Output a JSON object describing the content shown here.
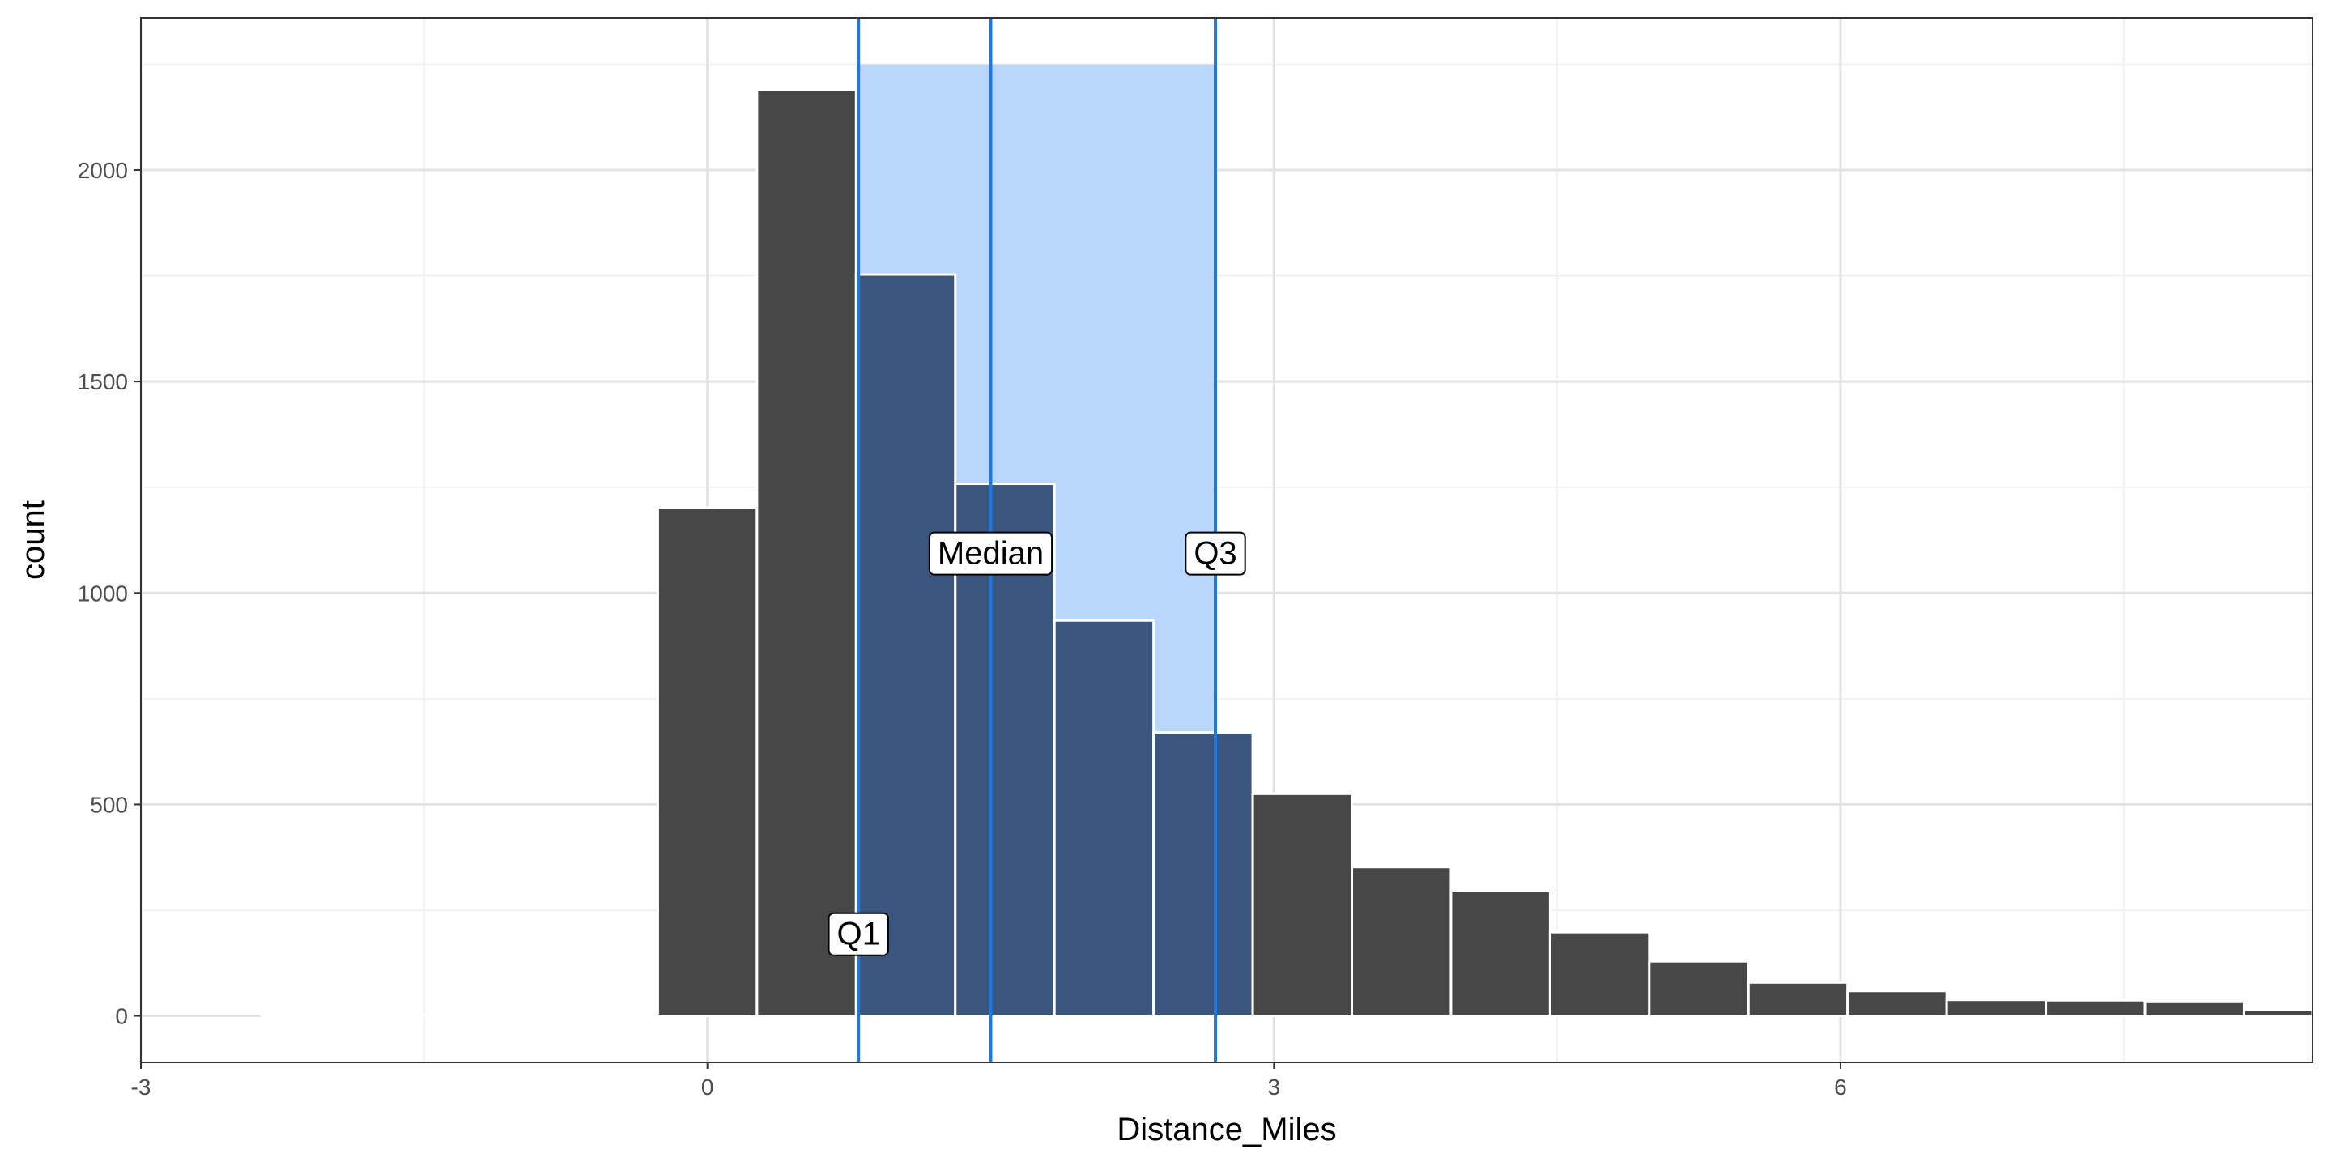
{
  "chart_data": {
    "type": "bar",
    "title": "",
    "xlabel": "Distance_Miles",
    "ylabel": "count",
    "xlim": [
      -3,
      8.5
    ],
    "ylim": [
      -110,
      2360
    ],
    "x_ticks": [
      -3,
      0,
      3,
      6
    ],
    "x_tick_labels": [
      "-3",
      "0",
      "3",
      "6"
    ],
    "y_ticks": [
      0,
      500,
      1000,
      1500,
      2000
    ],
    "y_tick_labels": [
      "0",
      "500",
      "1000",
      "1500",
      "2000"
    ],
    "grid": true,
    "bin_width": 0.525,
    "bins": [
      {
        "x": -2.1,
        "count": 0
      },
      {
        "x": -1.575,
        "count": 0
      },
      {
        "x": -1.05,
        "count": 0
      },
      {
        "x": -0.525,
        "count": 0
      },
      {
        "x": 0.0,
        "count": 1202
      },
      {
        "x": 0.525,
        "count": 2190
      },
      {
        "x": 1.05,
        "count": 1753
      },
      {
        "x": 1.575,
        "count": 1258
      },
      {
        "x": 2.1,
        "count": 935
      },
      {
        "x": 2.625,
        "count": 670
      },
      {
        "x": 3.15,
        "count": 525
      },
      {
        "x": 3.675,
        "count": 352
      },
      {
        "x": 4.2,
        "count": 295
      },
      {
        "x": 4.725,
        "count": 198
      },
      {
        "x": 5.25,
        "count": 129
      },
      {
        "x": 5.775,
        "count": 79
      },
      {
        "x": 6.3,
        "count": 59
      },
      {
        "x": 6.825,
        "count": 38
      },
      {
        "x": 7.35,
        "count": 37
      },
      {
        "x": 7.875,
        "count": 33
      },
      {
        "x": 8.4,
        "count": 15
      }
    ],
    "quartiles": [
      {
        "label": "Q1",
        "x": 0.8,
        "label_y": 195
      },
      {
        "label": "Median",
        "x": 1.5,
        "label_y": 1095
      },
      {
        "label": "Q3",
        "x": 2.69,
        "label_y": 1095
      }
    ],
    "iqr_band": {
      "x0": 0.8,
      "x1": 2.69,
      "ymax": 2250
    },
    "colors": {
      "bar": "#474747",
      "bar_in_iqr": "#3a567f",
      "band": "#b9d6fd",
      "quartile_line": "#1f77e0",
      "grid_major": "#e3e3e3",
      "grid_minor": "#f2f2f2",
      "panel_border": "#333333"
    }
  }
}
